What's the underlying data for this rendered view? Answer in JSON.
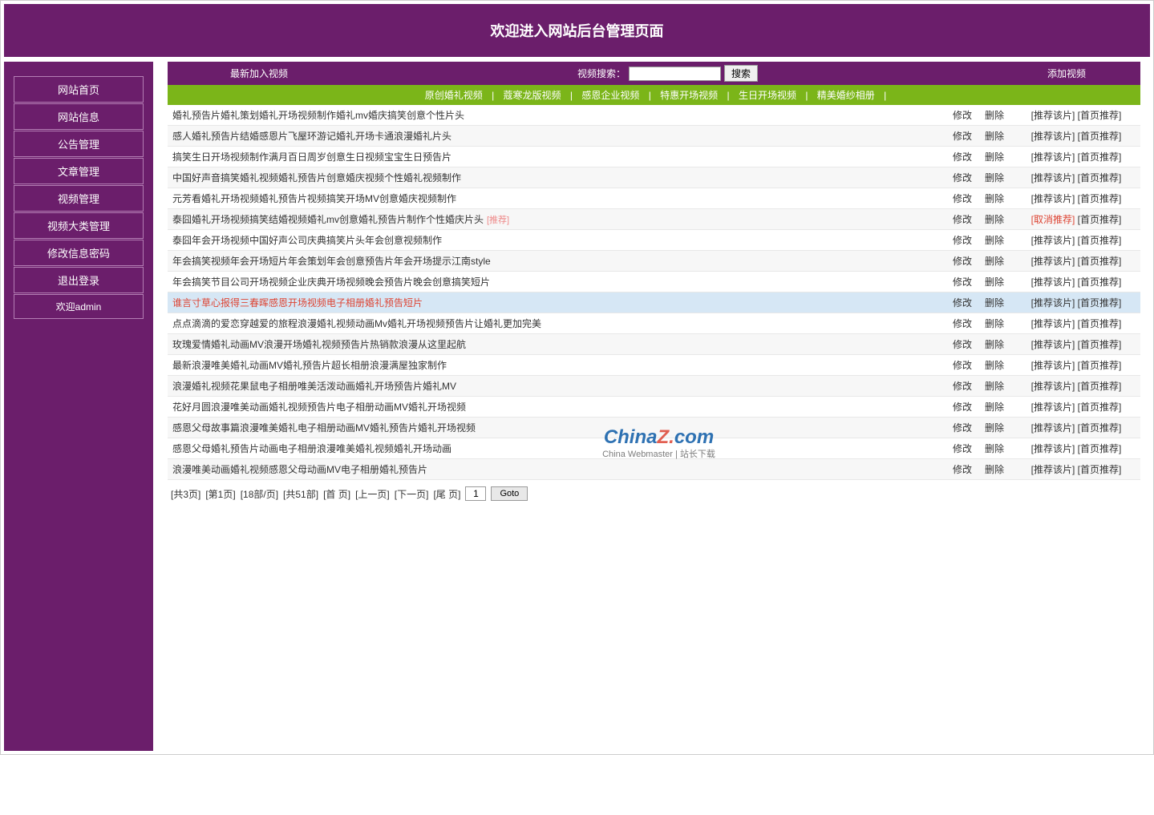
{
  "header": {
    "title": "欢迎进入网站后台管理页面"
  },
  "sidebar": {
    "items": [
      "网站首页",
      "网站信息",
      "公告管理",
      "文章管理",
      "视频管理",
      "视频大类管理",
      "修改信息密码",
      "退出登录"
    ],
    "welcome": "欢迎admin"
  },
  "topbar": {
    "latest_label": "最新加入视频",
    "search_label": "视频搜索：",
    "search_btn": "搜索",
    "add_label": "添加视频"
  },
  "categories": [
    "原创婚礼视频",
    "蔻寒龙版视频",
    "感恩企业视频",
    "特惠开场视频",
    "生日开场视频",
    "精美婚纱相册"
  ],
  "actions": {
    "edit": "修改",
    "delete": "删除",
    "recommend": "[推荐该片]",
    "cancel_recommend": "[取消推荐]",
    "home_recommend": "[首页推荐]",
    "rec_tag": "[推荐]"
  },
  "videos": [
    {
      "title": "婚礼预告片婚礼策划婚礼开场视频制作婚礼mv婚庆搞笑创意个性片头",
      "recommended": false,
      "highlight": false
    },
    {
      "title": "感人婚礼预告片结婚感恩片飞屋环游记婚礼开场卡通浪漫婚礼片头",
      "recommended": false,
      "highlight": false
    },
    {
      "title": "搞笑生日开场视频制作满月百日周岁创意生日视频宝宝生日预告片",
      "recommended": false,
      "highlight": false
    },
    {
      "title": "中国好声音搞笑婚礼视频婚礼预告片创意婚庆视频个性婚礼视频制作",
      "recommended": false,
      "highlight": false
    },
    {
      "title": "元芳看婚礼开场视频婚礼预告片视频搞笑开场MV创意婚庆视频制作",
      "recommended": false,
      "highlight": false
    },
    {
      "title": "泰囧婚礼开场视频搞笑结婚视频婚礼mv创意婚礼预告片制作个性婚庆片头",
      "recommended": true,
      "highlight": false
    },
    {
      "title": "泰囧年会开场视频中国好声公司庆典搞笑片头年会创意视频制作",
      "recommended": false,
      "highlight": false
    },
    {
      "title": "年会搞笑视频年会开场短片年会策划年会创意预告片年会开场提示江南style",
      "recommended": false,
      "highlight": false
    },
    {
      "title": "年会搞笑节目公司开场视频企业庆典开场视频晚会预告片晚会创意搞笑短片",
      "recommended": false,
      "highlight": false
    },
    {
      "title": "谁言寸草心报得三春晖感恩开场视频电子相册婚礼预告短片",
      "recommended": false,
      "highlight": true
    },
    {
      "title": "点点滴滴的爱恋穿越爱的旅程浪漫婚礼视频动画Mv婚礼开场视频预告片让婚礼更加完美",
      "recommended": false,
      "highlight": false
    },
    {
      "title": "玫瑰爱情婚礼动画MV浪漫开场婚礼视频预告片热销款浪漫从这里起航",
      "recommended": false,
      "highlight": false
    },
    {
      "title": "最新浪漫唯美婚礼动画MV婚礼预告片超长相册浪漫满屋独家制作",
      "recommended": false,
      "highlight": false
    },
    {
      "title": "浪漫婚礼视频花果鼠电子相册唯美活泼动画婚礼开场预告片婚礼MV",
      "recommended": false,
      "highlight": false
    },
    {
      "title": "花好月圆浪漫唯美动画婚礼视频预告片电子相册动画MV婚礼开场视频",
      "recommended": false,
      "highlight": false
    },
    {
      "title": "感恩父母故事篇浪漫唯美婚礼电子相册动画MV婚礼预告片婚礼开场视频",
      "recommended": false,
      "highlight": false
    },
    {
      "title": "感恩父母婚礼预告片动画电子相册浪漫唯美婚礼视频婚礼开场动画",
      "recommended": false,
      "highlight": false
    },
    {
      "title": "浪漫唯美动画婚礼视频感恩父母动画MV电子相册婚礼预告片",
      "recommended": false,
      "highlight": false
    }
  ],
  "pagination": {
    "total_pages_label": "[共3页]",
    "current_page_label": "[第1页]",
    "per_page_label": "[18部/页]",
    "total_items_label": "[共51部]",
    "first": "[首 页]",
    "prev": "[上一页]",
    "next": "[下一页]",
    "last": "[尾 页]",
    "goto_value": "1",
    "goto_btn": "Goto"
  },
  "watermark": {
    "main_pre": "China",
    "main_z": "Z",
    "main_dot": ".",
    "main_post": "com",
    "sub": "China Webmaster | 站长下载"
  }
}
